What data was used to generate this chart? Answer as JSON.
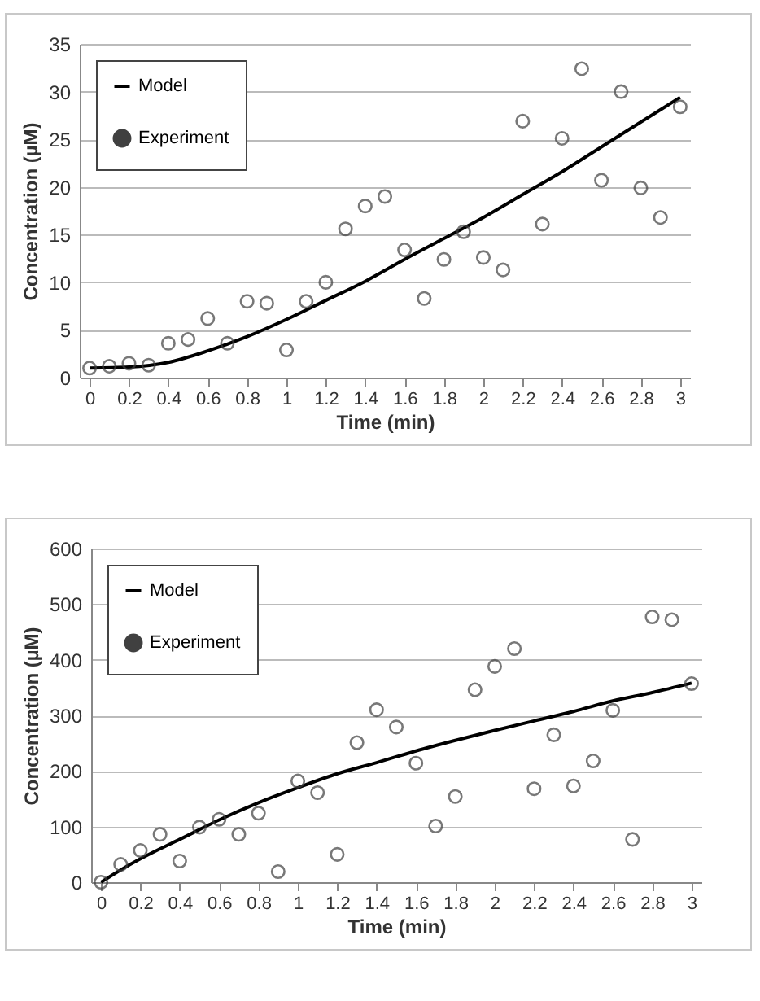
{
  "chart_data": [
    {
      "type": "scatter",
      "xlabel": "Time (min)",
      "ylabel": "Concentration (µM)",
      "xlim": [
        -0.05,
        3.05
      ],
      "xticks": [
        0,
        0.2,
        0.4,
        0.6,
        0.8,
        1,
        1.2,
        1.4,
        1.6,
        1.8,
        2,
        2.2,
        2.4,
        2.6,
        2.8,
        3
      ],
      "ylim": [
        0,
        35
      ],
      "yticks": [
        0,
        5,
        10,
        15,
        20,
        25,
        30,
        35
      ],
      "grid": "y",
      "legend": "top left",
      "series": [
        {
          "name": "Model",
          "type": "line",
          "color": "#000000",
          "marker": "none",
          "x": [
            0,
            0.2,
            0.4,
            0.6,
            0.8,
            1,
            1.2,
            1.4,
            1.6,
            1.8,
            2,
            2.2,
            2.4,
            2.6,
            2.8,
            3
          ],
          "values": [
            1.0,
            1.1,
            1.6,
            2.8,
            4.3,
            6.1,
            8.1,
            10.1,
            12.4,
            14.6,
            16.8,
            19.2,
            21.6,
            24.2,
            26.8,
            29.4
          ]
        },
        {
          "name": "Experiment",
          "type": "scatter",
          "color": "#404040",
          "marker": "circle",
          "x": [
            0,
            0.1,
            0.2,
            0.3,
            0.4,
            0.5,
            0.6,
            0.7,
            0.8,
            0.9,
            1,
            1.1,
            1.2,
            1.3,
            1.4,
            1.5,
            1.6,
            1.7,
            1.8,
            1.9,
            2,
            2.1,
            2.2,
            2.3,
            2.4,
            2.5,
            2.6,
            2.7,
            2.8,
            2.9,
            3
          ],
          "values": [
            1.0,
            1.2,
            1.5,
            1.3,
            3.6,
            4.0,
            6.2,
            3.6,
            8.0,
            7.8,
            2.9,
            8.0,
            10.0,
            15.6,
            18.0,
            19.0,
            13.4,
            8.3,
            12.4,
            15.3,
            12.6,
            11.3,
            26.9,
            16.1,
            25.1,
            32.4,
            20.7,
            30.0,
            19.9,
            16.8,
            28.4
          ]
        }
      ]
    },
    {
      "type": "scatter",
      "xlabel": "Time (min)",
      "ylabel": "Concentration (µM)",
      "xlim": [
        -0.05,
        3.05
      ],
      "xticks": [
        0,
        0.2,
        0.4,
        0.6,
        0.8,
        1,
        1.2,
        1.4,
        1.6,
        1.8,
        2,
        2.2,
        2.4,
        2.6,
        2.8,
        3
      ],
      "ylim": [
        0,
        600
      ],
      "yticks": [
        0,
        100,
        200,
        300,
        400,
        500,
        600
      ],
      "grid": "y",
      "legend": "top left",
      "series": [
        {
          "name": "Model",
          "type": "line",
          "color": "#000000",
          "marker": "none",
          "x": [
            0,
            0.1,
            0.2,
            0.3,
            0.4,
            0.6,
            0.8,
            1,
            1.2,
            1.4,
            1.6,
            1.8,
            2,
            2.2,
            2.4,
            2.6,
            2.8,
            3
          ],
          "values": [
            0,
            22,
            42,
            60,
            77,
            112,
            143,
            170,
            195,
            215,
            236,
            255,
            273,
            290,
            307,
            326,
            341,
            358
          ]
        },
        {
          "name": "Experiment",
          "type": "scatter",
          "color": "#404040",
          "marker": "circle",
          "x": [
            0,
            0.1,
            0.2,
            0.3,
            0.4,
            0.5,
            0.6,
            0.7,
            0.8,
            0.9,
            1,
            1.1,
            1.2,
            1.3,
            1.4,
            1.5,
            1.6,
            1.7,
            1.8,
            1.9,
            2,
            2.1,
            2.2,
            2.3,
            2.4,
            2.5,
            2.6,
            2.7,
            2.8,
            2.9,
            3
          ],
          "values": [
            0,
            32,
            57,
            86,
            38,
            99,
            113,
            86,
            124,
            19,
            182,
            161,
            50,
            251,
            310,
            279,
            214,
            101,
            154,
            346,
            388,
            420,
            168,
            265,
            173,
            218,
            309,
            77,
            477,
            472,
            357
          ]
        }
      ]
    }
  ]
}
